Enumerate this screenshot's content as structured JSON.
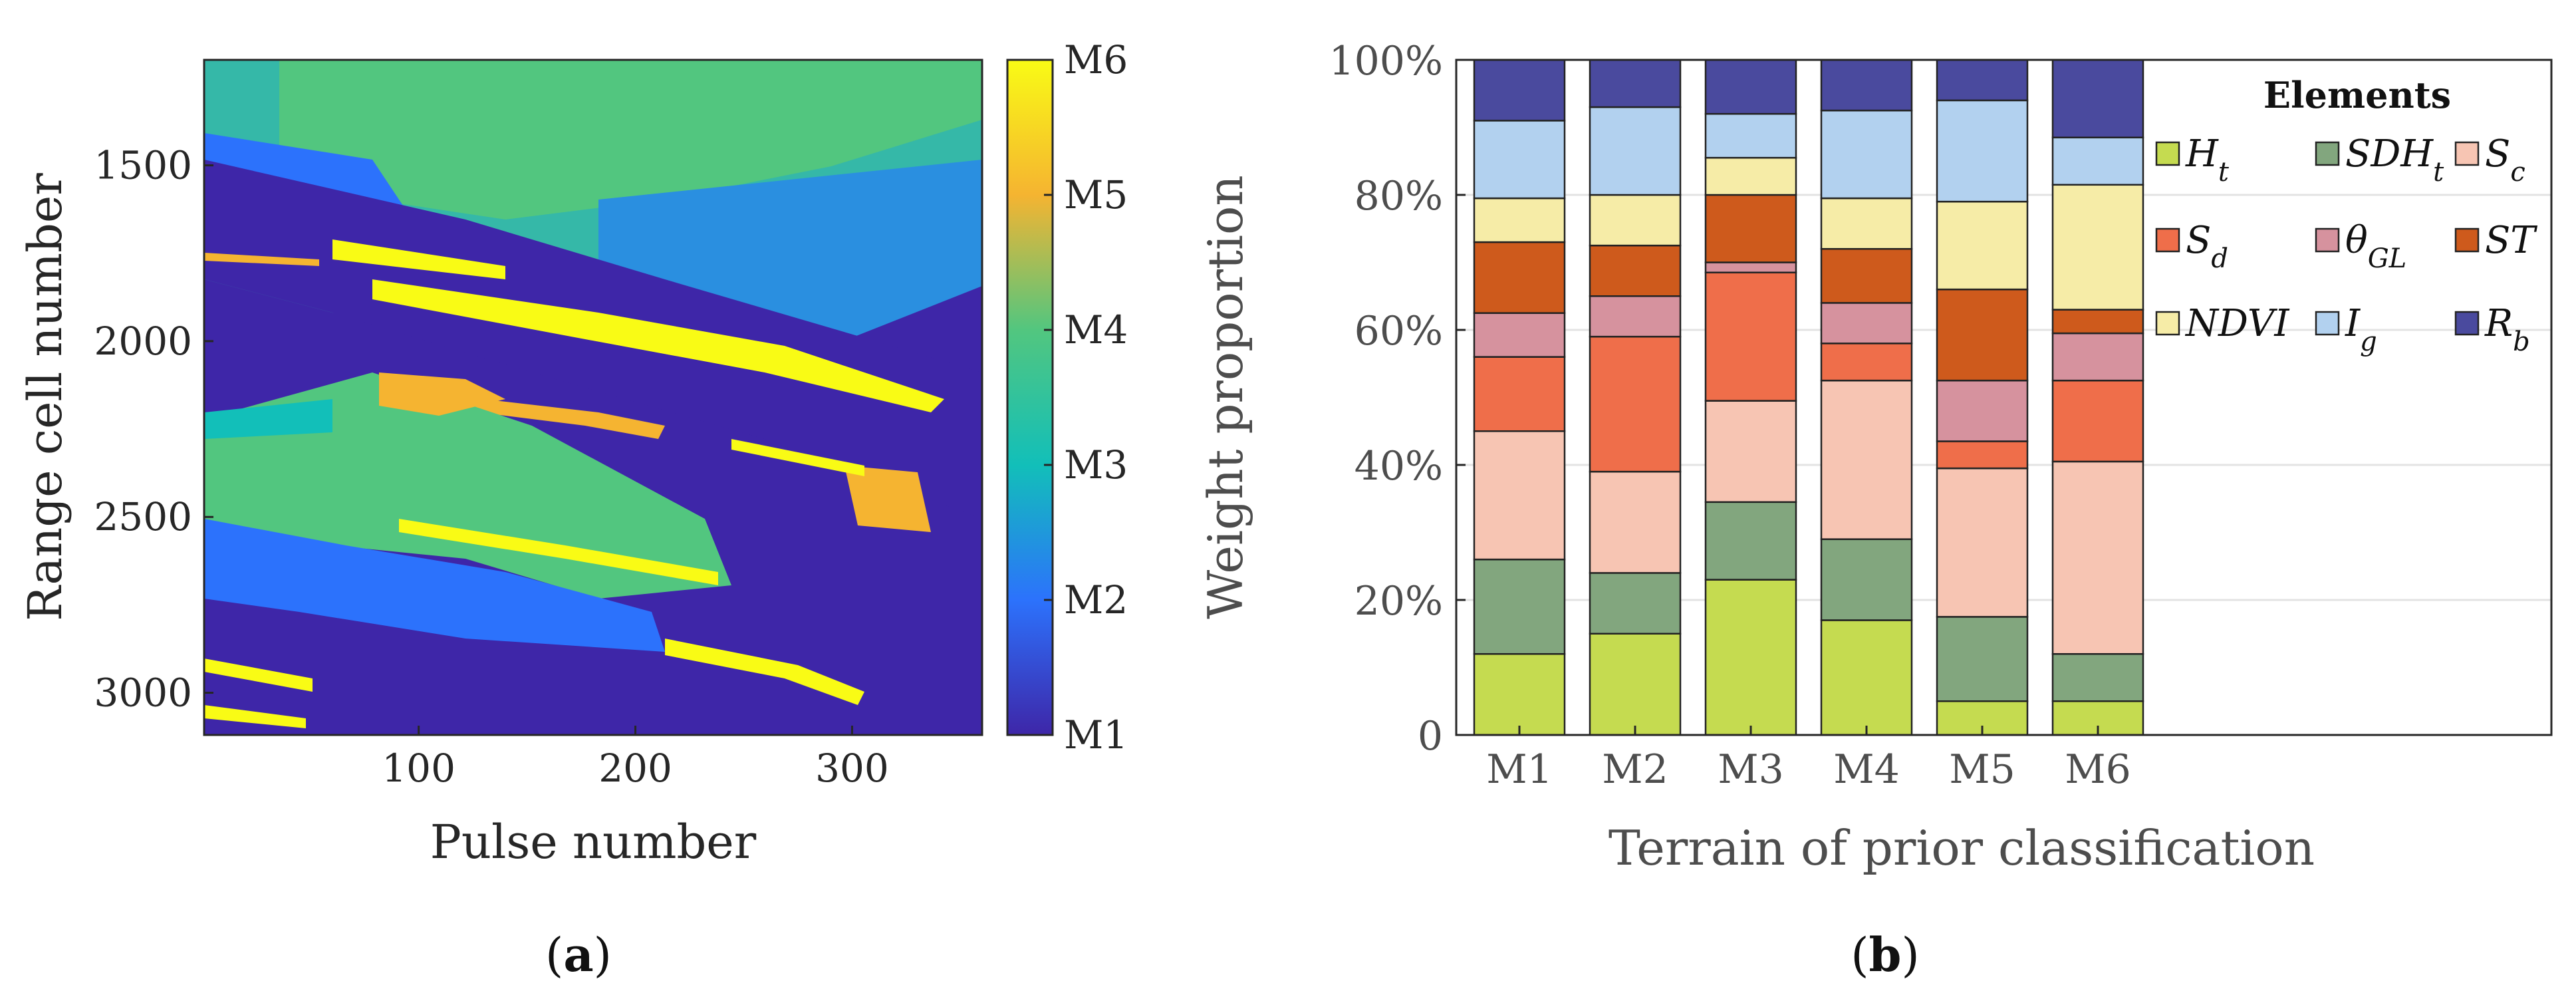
{
  "chart_data": [
    {
      "type": "heatmap",
      "panel_label": "a",
      "xlabel": "Pulse number",
      "ylabel": "Range cell number",
      "x_range": [
        1,
        360
      ],
      "y_range": [
        1200,
        3120
      ],
      "x_ticks": [
        "100",
        "200",
        "300"
      ],
      "x_tick_values": [
        100,
        200,
        300
      ],
      "y_ticks": [
        "1500",
        "2000",
        "2500",
        "3000"
      ],
      "y_tick_values": [
        1500,
        2000,
        2500,
        3000
      ],
      "colorbar": {
        "labels": [
          "M1",
          "M2",
          "M3",
          "M4",
          "M5",
          "M6"
        ],
        "colors": [
          "#3e26a8",
          "#2c72fc",
          "#12bfb9",
          "#52c67f",
          "#f5b431",
          "#f9fb15"
        ]
      }
    },
    {
      "type": "bar",
      "stacked": true,
      "panel_label": "b",
      "xlabel": "Terrain of prior classification",
      "ylabel": "Weight proportion",
      "ylim": [
        0,
        100
      ],
      "y_ticks": [
        "0",
        "20%",
        "40%",
        "60%",
        "80%",
        "100%"
      ],
      "y_tick_values": [
        0,
        20,
        40,
        60,
        80,
        100
      ],
      "grid": true,
      "categories": [
        "M1",
        "M2",
        "M3",
        "M4",
        "M5",
        "M6"
      ],
      "legend_title": "Elements",
      "legend_position": "top-right",
      "series": [
        {
          "name": "H",
          "sub": "t",
          "color": "#c5db50",
          "values": [
            12,
            15,
            23,
            17,
            5,
            5
          ]
        },
        {
          "name": "SDH",
          "sub": "t",
          "color": "#82a67e",
          "values": [
            14,
            9,
            11.5,
            12,
            12.5,
            7
          ]
        },
        {
          "name": "S",
          "sub": "c",
          "color": "#f7c5b3",
          "values": [
            19,
            15,
            15,
            23.5,
            22,
            28.5
          ]
        },
        {
          "name": "S",
          "sub": "d",
          "color": "#ef6e4a",
          "values": [
            11,
            20,
            19,
            5.5,
            4,
            12
          ]
        },
        {
          "name": "θ",
          "sub": "GL",
          "color": "#d6929e",
          "values": [
            6.5,
            6,
            1.5,
            6,
            9,
            7
          ]
        },
        {
          "name": "ST",
          "sub": "",
          "color": "#ce5a1c",
          "values": [
            10.5,
            7.5,
            10,
            8,
            13.5,
            3.5
          ]
        },
        {
          "name": "NDVI",
          "sub": "",
          "color": "#f6eca7",
          "values": [
            6.5,
            7.5,
            5.5,
            7.5,
            13,
            18.5
          ]
        },
        {
          "name": "I",
          "sub": "g",
          "color": "#b2d1ef",
          "values": [
            11.5,
            13,
            6.5,
            13,
            15,
            7
          ]
        },
        {
          "name": "R",
          "sub": "b",
          "color": "#4a4a9e",
          "values": [
            9,
            7,
            8,
            7.5,
            6,
            11.5
          ]
        }
      ]
    }
  ]
}
